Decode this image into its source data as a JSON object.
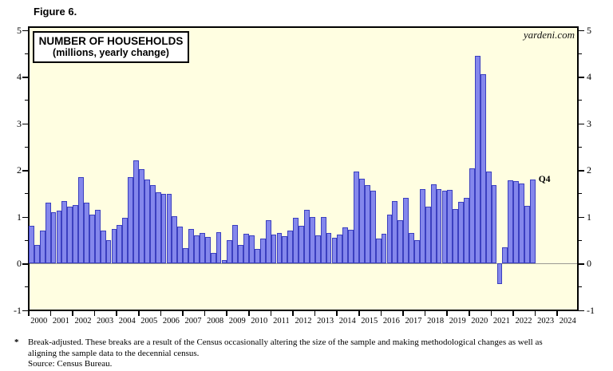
{
  "figure_label": "Figure 6.",
  "watermark": "yardeni.com",
  "title_box": {
    "line1": "NUMBER OF HOUSEHOLDS",
    "line2": "(millions, yearly change)"
  },
  "footnote": {
    "asterisk": "*",
    "line1": "Break-adjusted. These breaks are a result of the Census occasionally altering the size of the sample and making methodological changes as well as",
    "line2": "aligning the sample data to the decennial census.",
    "source": "Source: Census Bureau."
  },
  "colors": {
    "plot_background": "#fffee1",
    "bar_fill": "#8487ec",
    "bar_border": "#3b3fc0",
    "axis": "#000000",
    "zero_line": "#9a9a92",
    "page_background": "#ffffff"
  },
  "chart_data": {
    "type": "bar",
    "title": "NUMBER OF HOUSEHOLDS",
    "subtitle": "(millions, yearly change)",
    "frequency": "quarterly",
    "x_start": "2000 Q1",
    "x_end": "2022 Q4",
    "ylim": [
      -1,
      5
    ],
    "y_ticks": [
      -1,
      0,
      1,
      2,
      3,
      4,
      5
    ],
    "y_minor_tick_step": 0.5,
    "grid": "off",
    "zero_line": true,
    "last_point_label": "Q4",
    "year_labels": [
      "2000",
      "2001",
      "2002",
      "2003",
      "2004",
      "2005",
      "2006",
      "2007",
      "2008",
      "2009",
      "2010",
      "2011",
      "2012",
      "2013",
      "2014",
      "2015",
      "2016",
      "2017",
      "2018",
      "2019",
      "2020",
      "2021",
      "2022",
      "2023",
      "2024"
    ],
    "values": [
      0.8,
      0.4,
      0.7,
      1.3,
      1.1,
      1.12,
      1.33,
      1.22,
      1.25,
      1.85,
      1.3,
      1.05,
      1.15,
      0.7,
      0.5,
      0.73,
      0.82,
      0.98,
      1.85,
      2.2,
      2.02,
      1.8,
      1.68,
      1.52,
      1.48,
      1.49,
      1.01,
      0.78,
      0.33,
      0.74,
      0.59,
      0.65,
      0.56,
      0.23,
      0.66,
      0.06,
      0.5,
      0.82,
      0.39,
      0.63,
      0.59,
      0.3,
      0.53,
      0.92,
      0.62,
      0.65,
      0.58,
      0.7,
      0.98,
      0.8,
      1.15,
      1.0,
      0.6,
      1.0,
      0.65,
      0.55,
      0.62,
      0.77,
      0.72,
      1.97,
      1.82,
      1.68,
      1.55,
      0.53,
      0.64,
      1.05,
      1.33,
      0.92,
      1.4,
      0.65,
      0.5,
      1.59,
      1.21,
      1.7,
      1.59,
      1.55,
      1.58,
      1.17,
      1.32,
      1.4,
      2.04,
      4.45,
      4.05,
      1.96,
      1.68,
      -0.45,
      0.35,
      1.78,
      1.76,
      1.71,
      1.23,
      1.79
    ]
  }
}
